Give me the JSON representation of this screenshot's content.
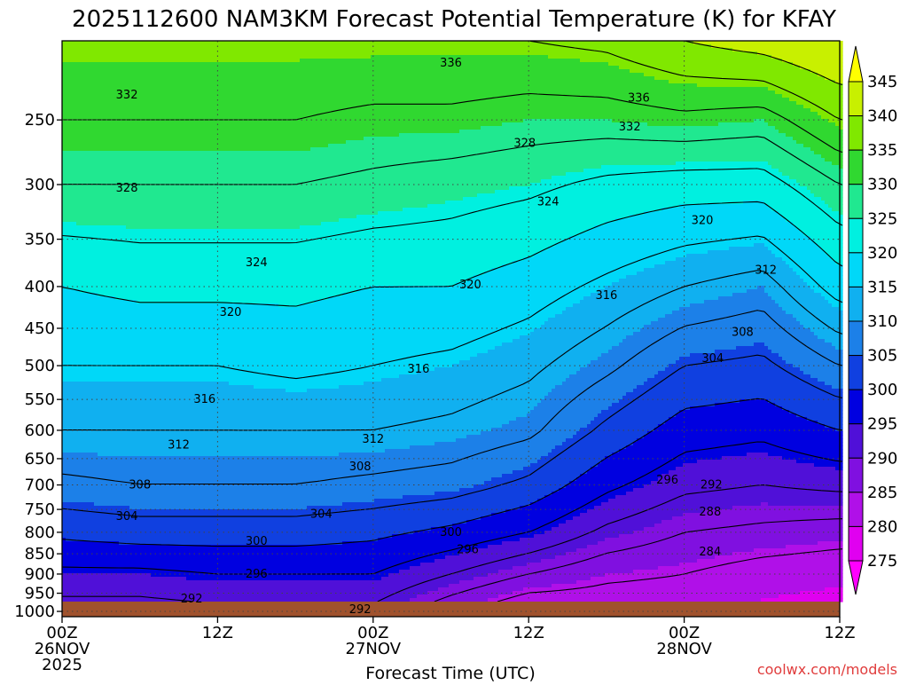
{
  "chart_data": {
    "type": "area",
    "title": "2025112600 NAM3KM Forecast Potential Temperature (K) for KFAY",
    "xlabel": "Forecast Time (UTC)",
    "ylabel": "",
    "credit": "coolwx.com/models",
    "x_ticks": [
      {
        "hours": 0,
        "lines": [
          "00Z",
          "26NOV",
          "2025"
        ]
      },
      {
        "hours": 12,
        "lines": [
          "12Z"
        ]
      },
      {
        "hours": 24,
        "lines": [
          "00Z",
          "27NOV"
        ]
      },
      {
        "hours": 36,
        "lines": [
          "12Z"
        ]
      },
      {
        "hours": 48,
        "lines": [
          "00Z",
          "28NOV"
        ]
      },
      {
        "hours": 60,
        "lines": [
          "12Z"
        ]
      }
    ],
    "xlim_hours": [
      0,
      60
    ],
    "y_ticks": [
      250,
      300,
      350,
      400,
      450,
      500,
      550,
      600,
      650,
      700,
      750,
      800,
      850,
      900,
      950,
      1000
    ],
    "ylim_hPa": [
      200,
      1015
    ],
    "y_scale": "log",
    "grid": true,
    "colorbar": {
      "labels": [
        345,
        340,
        335,
        330,
        325,
        320,
        315,
        310,
        305,
        300,
        295,
        290,
        285,
        280,
        275
      ],
      "colors": [
        "#ffff00",
        "#c8f000",
        "#80e800",
        "#30d830",
        "#20e890",
        "#00f0e0",
        "#00d8f8",
        "#10b0f0",
        "#1c80e8",
        "#1040e0",
        "#0000e0",
        "#5010d8",
        "#8010e0",
        "#b010e8",
        "#e000f0",
        "#ff00ff"
      ]
    },
    "levels_K": [
      284,
      288,
      292,
      296,
      300,
      304,
      308,
      312,
      316,
      320,
      324,
      328,
      332,
      336,
      340
    ],
    "theta_profiles": [
      {
        "hours": 0,
        "p_hPa": [
          1000,
          900,
          800,
          700,
          600,
          500,
          400,
          300,
          250,
          200
        ],
        "theta_K": [
          290,
          295,
          301,
          307,
          312,
          316,
          320,
          328,
          332,
          336
        ]
      },
      {
        "hours": 6,
        "p_hPa": [
          1000,
          900,
          800,
          700,
          600,
          500,
          400,
          300,
          250,
          200
        ],
        "theta_K": [
          290,
          295,
          302,
          308,
          312,
          316,
          321,
          328,
          332,
          336
        ]
      },
      {
        "hours": 12,
        "p_hPa": [
          1000,
          900,
          800,
          700,
          600,
          500,
          400,
          300,
          250,
          200
        ],
        "theta_K": [
          291,
          296,
          302,
          308,
          312,
          316,
          321,
          328,
          332,
          336
        ]
      },
      {
        "hours": 18,
        "p_hPa": [
          1000,
          900,
          800,
          700,
          600,
          500,
          400,
          300,
          250,
          200
        ],
        "theta_K": [
          291,
          296,
          302,
          308,
          312,
          317,
          321,
          328,
          332,
          336
        ]
      },
      {
        "hours": 24,
        "p_hPa": [
          1000,
          900,
          800,
          700,
          600,
          500,
          400,
          300,
          250,
          200
        ],
        "theta_K": [
          291,
          296,
          301,
          307,
          312,
          316,
          320,
          327,
          331,
          336
        ]
      },
      {
        "hours": 30,
        "p_hPa": [
          1000,
          900,
          800,
          700,
          600,
          500,
          400,
          300,
          250,
          200
        ],
        "theta_K": [
          285,
          292,
          299,
          306,
          311,
          315,
          320,
          326,
          331,
          336
        ]
      },
      {
        "hours": 36,
        "p_hPa": [
          1000,
          900,
          800,
          700,
          600,
          500,
          400,
          300,
          250,
          200
        ],
        "theta_K": [
          280,
          288,
          296,
          303,
          309,
          313,
          318,
          325,
          330,
          336
        ]
      },
      {
        "hours": 42,
        "p_hPa": [
          1000,
          900,
          800,
          700,
          600,
          500,
          400,
          300,
          250,
          200
        ],
        "theta_K": [
          281,
          285,
          291,
          297,
          303,
          309,
          315,
          323,
          330,
          337
        ]
      },
      {
        "hours": 48,
        "p_hPa": [
          1000,
          900,
          800,
          700,
          600,
          500,
          400,
          300,
          250,
          200
        ],
        "theta_K": [
          281,
          284,
          288,
          293,
          298,
          304,
          312,
          322,
          331,
          340
        ]
      },
      {
        "hours": 54,
        "p_hPa": [
          1000,
          900,
          800,
          700,
          600,
          500,
          400,
          300,
          250,
          200
        ],
        "theta_K": [
          279,
          282,
          287,
          292,
          297,
          303,
          310,
          322,
          330,
          342
        ]
      },
      {
        "hours": 60,
        "p_hPa": [
          1000,
          900,
          800,
          700,
          600,
          500,
          400,
          300,
          250,
          200
        ],
        "theta_K": [
          278,
          281,
          286,
          293,
          300,
          308,
          318,
          328,
          336,
          345
        ]
      }
    ],
    "contour_labels": [
      {
        "text": "336",
        "hours": 30,
        "p_hPa": 213
      },
      {
        "text": "332",
        "hours": 5,
        "p_hPa": 233
      },
      {
        "text": "336",
        "hours": 44.5,
        "p_hPa": 235
      },
      {
        "text": "332",
        "hours": 43.8,
        "p_hPa": 255
      },
      {
        "text": "328",
        "hours": 35.7,
        "p_hPa": 267
      },
      {
        "text": "328",
        "hours": 5,
        "p_hPa": 303
      },
      {
        "text": "324",
        "hours": 37.5,
        "p_hPa": 315
      },
      {
        "text": "320",
        "hours": 49.4,
        "p_hPa": 332
      },
      {
        "text": "324",
        "hours": 15,
        "p_hPa": 374
      },
      {
        "text": "312",
        "hours": 54.3,
        "p_hPa": 382
      },
      {
        "text": "320",
        "hours": 31.5,
        "p_hPa": 398
      },
      {
        "text": "316",
        "hours": 42,
        "p_hPa": 410
      },
      {
        "text": "320",
        "hours": 13,
        "p_hPa": 430
      },
      {
        "text": "308",
        "hours": 52.5,
        "p_hPa": 455
      },
      {
        "text": "304",
        "hours": 50.2,
        "p_hPa": 490
      },
      {
        "text": "316",
        "hours": 27.5,
        "p_hPa": 505
      },
      {
        "text": "316",
        "hours": 11,
        "p_hPa": 550
      },
      {
        "text": "312",
        "hours": 24,
        "p_hPa": 615
      },
      {
        "text": "312",
        "hours": 9,
        "p_hPa": 625
      },
      {
        "text": "308",
        "hours": 23,
        "p_hPa": 665
      },
      {
        "text": "296",
        "hours": 46.7,
        "p_hPa": 690
      },
      {
        "text": "292",
        "hours": 50.1,
        "p_hPa": 700
      },
      {
        "text": "308",
        "hours": 6,
        "p_hPa": 700
      },
      {
        "text": "288",
        "hours": 50,
        "p_hPa": 755
      },
      {
        "text": "304",
        "hours": 20,
        "p_hPa": 760
      },
      {
        "text": "304",
        "hours": 5,
        "p_hPa": 765
      },
      {
        "text": "300",
        "hours": 30,
        "p_hPa": 800
      },
      {
        "text": "300",
        "hours": 15,
        "p_hPa": 820
      },
      {
        "text": "296",
        "hours": 31.3,
        "p_hPa": 840
      },
      {
        "text": "284",
        "hours": 50,
        "p_hPa": 845
      },
      {
        "text": "296",
        "hours": 15,
        "p_hPa": 900
      },
      {
        "text": "292",
        "hours": 10,
        "p_hPa": 965
      },
      {
        "text": "292",
        "hours": 23,
        "p_hPa": 995
      }
    ]
  }
}
